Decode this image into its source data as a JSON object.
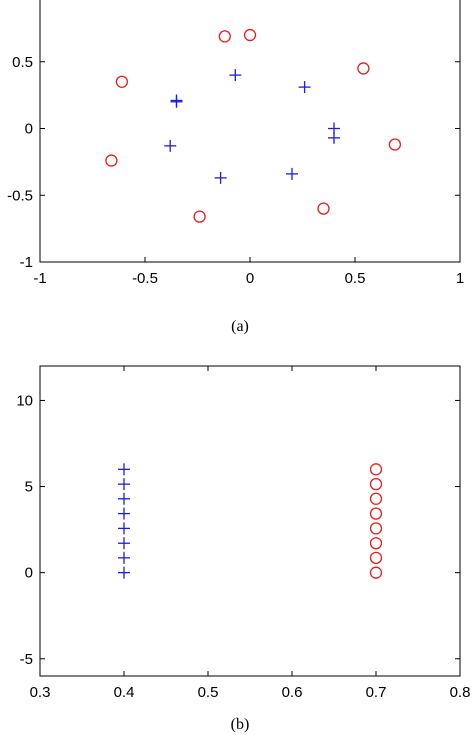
{
  "chart_data": [
    {
      "type": "scatter",
      "caption": "(a)",
      "xlim": [
        -1,
        1
      ],
      "ylim": [
        -1,
        1
      ],
      "xticks": [
        -1,
        -0.5,
        0,
        0.5,
        1
      ],
      "xtick_labels": [
        "-1",
        "-0.5",
        "0",
        "0.5",
        "1"
      ],
      "yticks": [
        -1,
        -0.5,
        0,
        0.5
      ],
      "ytick_labels": [
        "-1",
        "-0.5",
        "0",
        "0.5"
      ],
      "grid": false,
      "series": [
        {
          "marker": "plus",
          "color": "#1f1fd0",
          "points": [
            [
              -0.07,
              0.4
            ],
            [
              -0.35,
              0.2
            ],
            [
              -0.35,
              0.21
            ],
            [
              0.26,
              0.31
            ],
            [
              0.4,
              0.0
            ],
            [
              0.4,
              -0.07
            ],
            [
              -0.38,
              -0.13
            ],
            [
              -0.14,
              -0.37
            ],
            [
              0.2,
              -0.34
            ]
          ]
        },
        {
          "marker": "circle",
          "color": "#e02020",
          "points": [
            [
              -0.12,
              0.69
            ],
            [
              0.0,
              0.7
            ],
            [
              -0.61,
              0.35
            ],
            [
              0.54,
              0.45
            ],
            [
              0.69,
              -0.12
            ],
            [
              -0.66,
              -0.24
            ],
            [
              -0.24,
              -0.66
            ],
            [
              0.35,
              -0.6
            ]
          ]
        }
      ]
    },
    {
      "type": "scatter",
      "caption": "(b)",
      "xlim": [
        0.3,
        0.8
      ],
      "ylim": [
        -6,
        12
      ],
      "xticks": [
        0.3,
        0.4,
        0.5,
        0.6,
        0.7,
        0.8
      ],
      "xtick_labels": [
        "0.3",
        "0.4",
        "0.5",
        "0.6",
        "0.7",
        "0.8"
      ],
      "yticks": [
        -5,
        0,
        5,
        10
      ],
      "ytick_labels": [
        "-5",
        "0",
        "5",
        "10"
      ],
      "grid": false,
      "series": [
        {
          "marker": "plus",
          "color": "#1f1fd0",
          "points": [
            [
              0.4,
              0.0
            ],
            [
              0.4,
              0.86
            ],
            [
              0.4,
              1.71
            ],
            [
              0.4,
              2.57
            ],
            [
              0.4,
              3.43
            ],
            [
              0.4,
              4.29
            ],
            [
              0.4,
              5.14
            ],
            [
              0.4,
              6.0
            ]
          ]
        },
        {
          "marker": "circle",
          "color": "#e02020",
          "points": [
            [
              0.7,
              0.0
            ],
            [
              0.7,
              0.86
            ],
            [
              0.7,
              1.71
            ],
            [
              0.7,
              2.57
            ],
            [
              0.7,
              3.43
            ],
            [
              0.7,
              4.29
            ],
            [
              0.7,
              5.14
            ],
            [
              0.7,
              6.0
            ]
          ]
        }
      ]
    }
  ]
}
